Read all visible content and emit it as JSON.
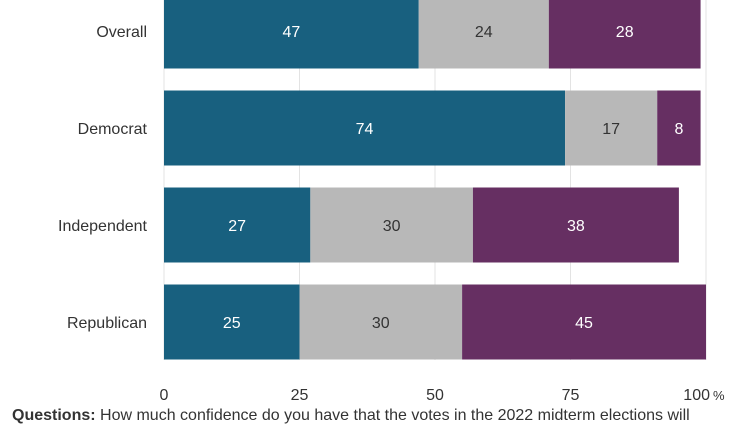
{
  "chart_data": {
    "type": "bar",
    "orientation": "horizontal",
    "stacked": true,
    "categories": [
      "Overall",
      "Democrat",
      "Independent",
      "Republican"
    ],
    "series": [
      {
        "values": [
          47,
          74,
          27,
          25
        ],
        "color": "#18607f",
        "label_color": "#ffffff"
      },
      {
        "values": [
          24,
          17,
          30,
          30
        ],
        "color": "#b8b8b8",
        "label_color": "#333333"
      },
      {
        "values": [
          28,
          8,
          38,
          45
        ],
        "color": "#662f62",
        "label_color": "#ffffff"
      }
    ],
    "xlim": [
      0,
      100
    ],
    "xticks": [
      "0",
      "25",
      "50",
      "75",
      "100"
    ],
    "x_unit": "%",
    "grid": true,
    "legend": "none"
  },
  "footnote": {
    "label": "Questions:",
    "text": "How much confidence do you have that the votes in the 2022 midterm elections will"
  }
}
